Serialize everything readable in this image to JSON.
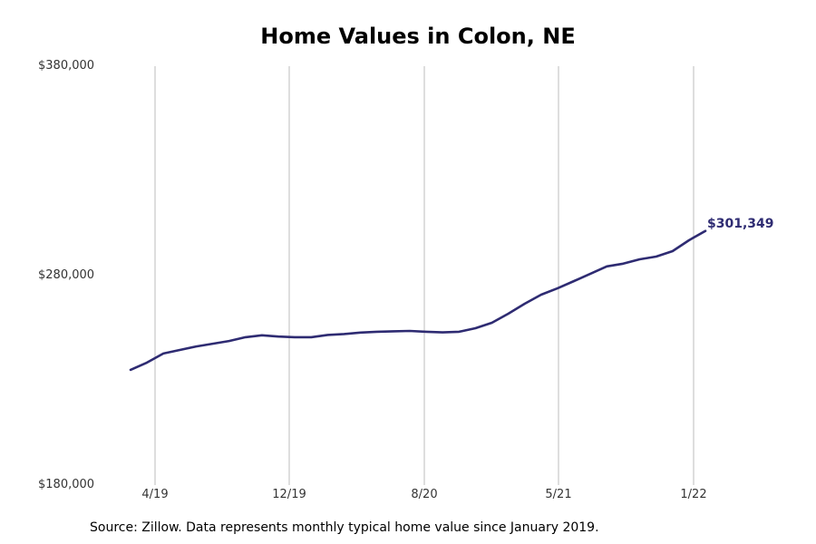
{
  "chart_data": {
    "type": "line",
    "title": "Home Values in Colon, NE",
    "xlabel": "",
    "ylabel": "",
    "ylim": [
      180000,
      380000
    ],
    "yticks": [
      "$180,000",
      "$280,000",
      "$380,000"
    ],
    "xticks": [
      "4/19",
      "12/19",
      "8/20",
      "5/21",
      "1/22"
    ],
    "grid": "vertical",
    "line_color": "#2e2b72",
    "end_label": "$301,349",
    "series": [
      {
        "name": "Typical home value",
        "values": [
          235000,
          238500,
          242800,
          244500,
          246200,
          247500,
          248800,
          250600,
          251500,
          250900,
          250600,
          250600,
          251700,
          252100,
          252800,
          253200,
          253400,
          253600,
          253200,
          252900,
          253200,
          254900,
          257500,
          261800,
          266600,
          270900,
          274000,
          277400,
          280900,
          284400,
          285700,
          287800,
          289100,
          291700,
          296900,
          301349
        ]
      }
    ]
  },
  "header": {
    "title": "Home Values in Colon, NE"
  },
  "axes": {
    "y": [
      "$380,000",
      "$280,000",
      "$180,000"
    ],
    "x": [
      "4/19",
      "12/19",
      "8/20",
      "5/21",
      "1/22"
    ]
  },
  "footer": {
    "source": "Source: Zillow. Data represents monthly typical home value since January 2019."
  },
  "annotation": {
    "end_value": "$301,349"
  }
}
